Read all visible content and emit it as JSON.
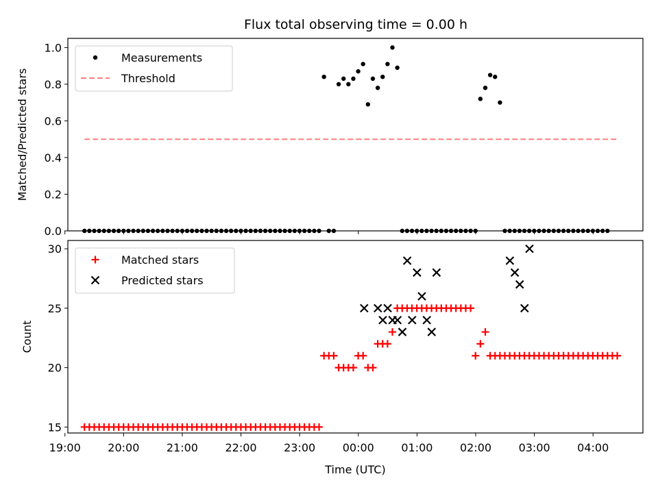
{
  "figure": {
    "title": "Flux total observing time = 0.00 h"
  },
  "chart_data": [
    {
      "type": "scatter",
      "panel": "top",
      "ylabel": "Matched/Predicted stars",
      "xlabel": "",
      "xlim": [
        19.05,
        28.85
      ],
      "ylim": [
        0,
        1.05
      ],
      "yticks": [
        0.0,
        0.2,
        0.4,
        0.6,
        0.8,
        1.0
      ],
      "ytick_labels": [
        "0.0",
        "0.2",
        "0.4",
        "0.6",
        "0.8",
        "1.0"
      ],
      "grid": false,
      "legend_position": "upper-left",
      "threshold": 0.5,
      "threshold_x_range": [
        19.333,
        28.417
      ],
      "series": [
        {
          "name": "Measurements",
          "marker": "dot",
          "color": "#000000",
          "x_start": 19.333,
          "x_step": 0.0833,
          "values": [
            0,
            0,
            0,
            0,
            0,
            0,
            0,
            0,
            0,
            0,
            0,
            0,
            0,
            0,
            0,
            0,
            0,
            0,
            0,
            0,
            0,
            0,
            0,
            0,
            0,
            0,
            0,
            0,
            0,
            0,
            0,
            0,
            0,
            0,
            0,
            0,
            0,
            0,
            0,
            0,
            0,
            0,
            0,
            0,
            0,
            0,
            0,
            0,
            0,
            0.84,
            0,
            0,
            0.8,
            0.83,
            0.8,
            0.83,
            0.87,
            0.91,
            0.69,
            0.83,
            0.78,
            0.84,
            0.91,
            1.0,
            0.89,
            0,
            0,
            0,
            0,
            0,
            0,
            0,
            0,
            0,
            0,
            0,
            0,
            0,
            0,
            0,
            0,
            0.72,
            0.78,
            0.85,
            0.84,
            0.7,
            0,
            0,
            0,
            0,
            0,
            0,
            0,
            0,
            0,
            0,
            0,
            0,
            0,
            0,
            0,
            0,
            0,
            0,
            0,
            0,
            0,
            0
          ]
        },
        {
          "name": "Threshold",
          "style": "dashed",
          "color": "#ff7f7f"
        }
      ]
    },
    {
      "type": "scatter",
      "panel": "bottom",
      "ylabel": "Count",
      "xlabel": "Time (UTC)",
      "xlim": [
        19.05,
        28.85
      ],
      "ylim": [
        14.5,
        30.7
      ],
      "yticks": [
        15,
        20,
        25,
        30
      ],
      "ytick_labels": [
        "15",
        "20",
        "25",
        "30"
      ],
      "xticks": [
        19,
        20,
        21,
        22,
        23,
        24,
        25,
        26,
        27,
        28
      ],
      "xtick_labels": [
        "19:00",
        "20:00",
        "21:00",
        "22:00",
        "23:00",
        "00:00",
        "01:00",
        "02:00",
        "03:00",
        "04:00"
      ],
      "grid": false,
      "legend_position": "upper-left",
      "series": [
        {
          "name": "Matched stars",
          "marker": "plus",
          "color": "#ff0000",
          "x_start": 19.333,
          "x_step": 0.0833,
          "values": [
            15,
            15,
            15,
            15,
            15,
            15,
            15,
            15,
            15,
            15,
            15,
            15,
            15,
            15,
            15,
            15,
            15,
            15,
            15,
            15,
            15,
            15,
            15,
            15,
            15,
            15,
            15,
            15,
            15,
            15,
            15,
            15,
            15,
            15,
            15,
            15,
            15,
            15,
            15,
            15,
            15,
            15,
            15,
            15,
            15,
            15,
            15,
            15,
            15,
            21,
            21,
            21,
            20,
            20,
            20,
            20,
            21,
            21,
            20,
            20,
            22,
            22,
            22,
            23,
            25,
            25,
            25,
            25,
            25,
            25,
            25,
            25,
            25,
            25,
            25,
            25,
            25,
            25,
            25,
            25,
            21,
            22,
            23,
            21,
            21,
            21,
            21,
            21,
            21,
            21,
            21,
            21,
            21,
            21,
            21,
            21,
            21,
            21,
            21,
            21,
            21,
            21,
            21,
            21,
            21,
            21,
            21,
            21,
            21,
            21
          ]
        },
        {
          "name": "Predicted stars",
          "marker": "x",
          "color": "#000000",
          "x": [
            24.1,
            24.333,
            24.417,
            24.5,
            24.583,
            24.667,
            24.75,
            24.833,
            24.917,
            25.0,
            25.083,
            25.167,
            25.25,
            25.333,
            26.583,
            26.667,
            26.75,
            26.833,
            26.917
          ],
          "values": [
            25,
            25,
            24,
            25,
            24,
            24,
            23,
            29,
            24,
            28,
            26,
            24,
            23,
            28,
            29,
            28,
            27,
            25,
            30
          ]
        }
      ]
    }
  ]
}
